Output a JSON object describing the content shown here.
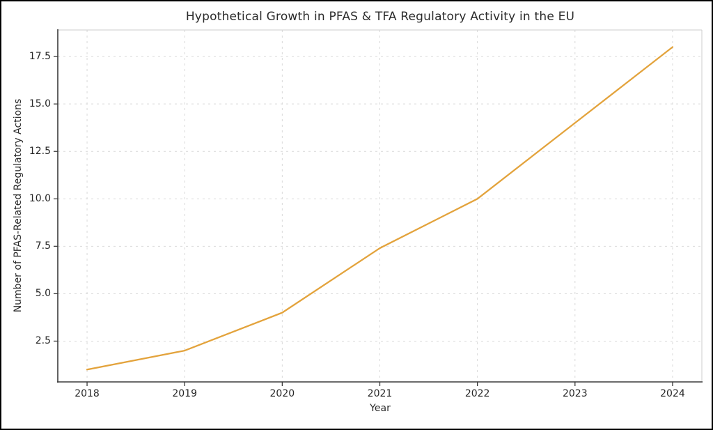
{
  "chart_data": {
    "type": "line",
    "title": "Hypothetical Growth in PFAS & TFA Regulatory Activity in the EU",
    "xlabel": "Year",
    "ylabel": "Number of PFAS-Related Regulatory Actions",
    "x": [
      2018,
      2019,
      2020,
      2021,
      2022,
      2023,
      2024
    ],
    "values": [
      1,
      2,
      4,
      7.4,
      10,
      14,
      18
    ],
    "x_tick_labels": [
      "2018",
      "2019",
      "2020",
      "2021",
      "2022",
      "2023",
      "2024"
    ],
    "y_ticks": [
      2.5,
      5.0,
      7.5,
      10.0,
      12.5,
      15.0,
      17.5
    ],
    "y_tick_labels": [
      "2.5",
      "5.0",
      "7.5",
      "10.0",
      "12.5",
      "15.0",
      "17.5"
    ],
    "xlim": [
      2017.7,
      2024.3
    ],
    "ylim": [
      0.35,
      18.9
    ],
    "grid": true,
    "grid_style": "dashed",
    "legend": false,
    "line_color": "#E3A33C"
  },
  "colors": {
    "background": "#ffffff",
    "outer_border": "#000000",
    "text": "#2b2b2b",
    "tick_text": "#262626",
    "grid": "#d9d9d9",
    "spine_dark": "#3a3a3a",
    "spine_light": "#cccccc",
    "line": "#E3A33C"
  }
}
